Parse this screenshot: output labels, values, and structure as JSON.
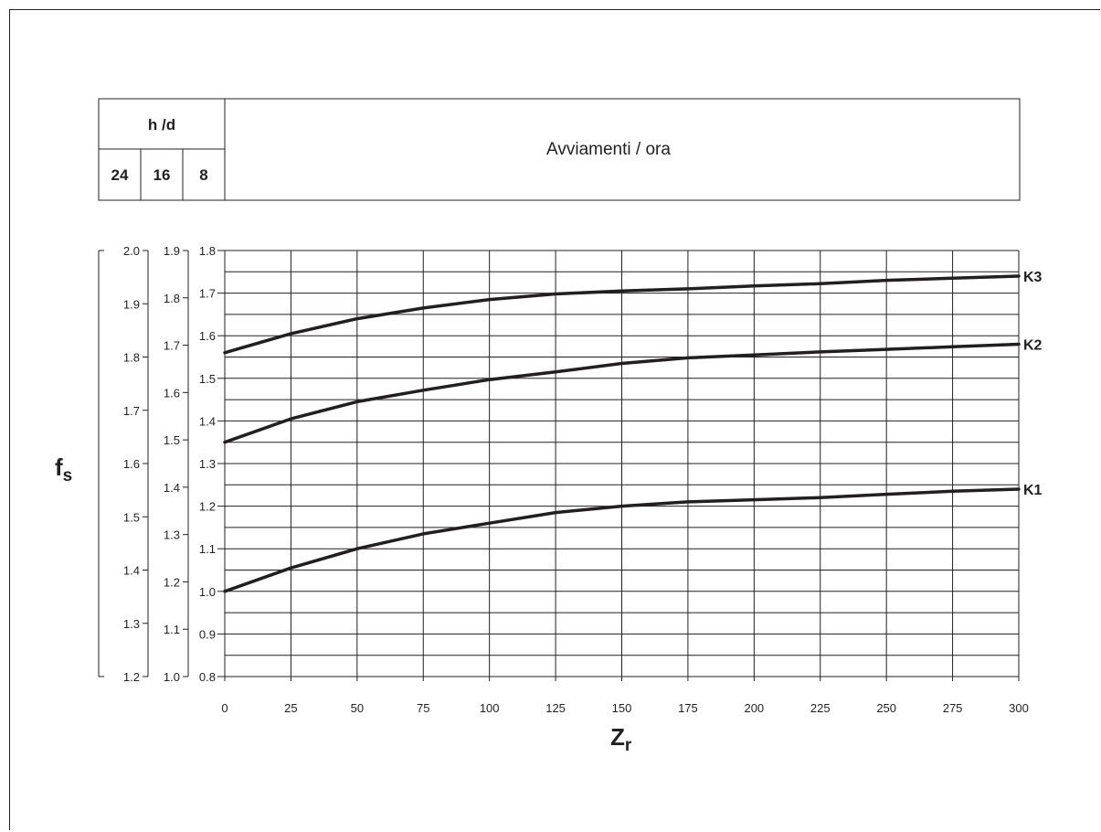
{
  "header": {
    "hd_label": "h /d",
    "hd_values": [
      "24",
      "16",
      "8"
    ],
    "starts_label": "Avviamenti / ora"
  },
  "y_axes": {
    "axis_24h": [
      "1.2",
      "1.3",
      "1.4",
      "1.5",
      "1.6",
      "1.7",
      "1.8",
      "1.9",
      "2.0"
    ],
    "axis_16h": [
      "1.0",
      "1.1",
      "1.2",
      "1.3",
      "1.4",
      "1.5",
      "1.6",
      "1.7",
      "1.8",
      "1.9"
    ],
    "axis_8h": [
      "0.8",
      "0.9",
      "1.0",
      "1.1",
      "1.2",
      "1.3",
      "1.4",
      "1.5",
      "1.6",
      "1.7",
      "1.8"
    ]
  },
  "chart_data": {
    "type": "line",
    "xlabel_main": "Z",
    "xlabel_sub": "r",
    "ylabel_main": "f",
    "ylabel_sub": "s",
    "xlim": [
      0,
      300
    ],
    "ylim": [
      0.8,
      1.8
    ],
    "x_ticks": [
      "0",
      "25",
      "50",
      "75",
      "100",
      "125",
      "150",
      "175",
      "200",
      "225",
      "250",
      "275",
      "300"
    ],
    "grid": true,
    "x": [
      0,
      25,
      50,
      75,
      100,
      125,
      150,
      175,
      200,
      225,
      250,
      275,
      300
    ],
    "series": [
      {
        "name": "K1",
        "values": [
          1.0,
          1.055,
          1.1,
          1.135,
          1.16,
          1.185,
          1.2,
          1.21,
          1.215,
          1.22,
          1.228,
          1.235,
          1.24
        ]
      },
      {
        "name": "K2",
        "values": [
          1.35,
          1.405,
          1.445,
          1.472,
          1.497,
          1.515,
          1.535,
          1.548,
          1.555,
          1.562,
          1.568,
          1.574,
          1.58
        ]
      },
      {
        "name": "K3",
        "values": [
          1.56,
          1.605,
          1.64,
          1.665,
          1.685,
          1.698,
          1.705,
          1.71,
          1.717,
          1.722,
          1.73,
          1.735,
          1.74
        ]
      }
    ]
  }
}
